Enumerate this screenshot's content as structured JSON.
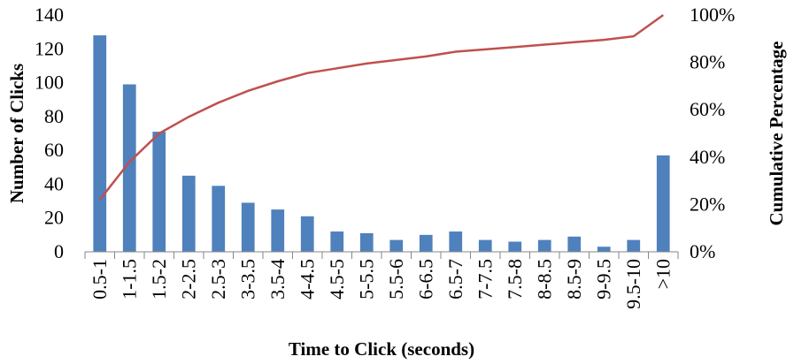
{
  "chart_data": {
    "type": "bar",
    "categories": [
      "0.5-1",
      "1-1.5",
      "1.5-2",
      "2-2.5",
      "2.5-3",
      "3-3.5",
      "3.5-4",
      "4-4.5",
      "4.5-5",
      "5-5.5",
      "5.5-6",
      "6-6.5",
      "6.5-7",
      "7-7.5",
      "7.5-8",
      "8-8.5",
      "8.5-9",
      "9-9.5",
      "9.5-10",
      ">10"
    ],
    "series": [
      {
        "type": "bar",
        "axis": "left",
        "values": [
          128,
          99,
          71,
          45,
          39,
          29,
          25,
          21,
          12,
          11,
          7,
          10,
          12,
          7,
          6,
          7,
          9,
          3,
          7,
          57
        ]
      },
      {
        "type": "line",
        "axis": "right",
        "values": [
          22,
          38,
          50,
          57,
          63,
          68,
          72,
          75.5,
          77.5,
          79.5,
          81,
          82.5,
          84.5,
          85.5,
          86.5,
          87.5,
          88.5,
          89.5,
          91,
          100
        ]
      }
    ],
    "xlabel": "Time to Click (seconds)",
    "ylabel": "Number of Clicks",
    "y2label": "Cumulative Percentage",
    "ylim": [
      0,
      140
    ],
    "yticks": [
      "0",
      "20",
      "40",
      "60",
      "80",
      "100",
      "120",
      "140"
    ],
    "y2lim": [
      0,
      100
    ],
    "y2ticks": [
      "0%",
      "20%",
      "40%",
      "60%",
      "80%",
      "100%"
    ],
    "grid": false,
    "colors": {
      "bar": "#4f81bd",
      "line": "#c0504d"
    }
  }
}
